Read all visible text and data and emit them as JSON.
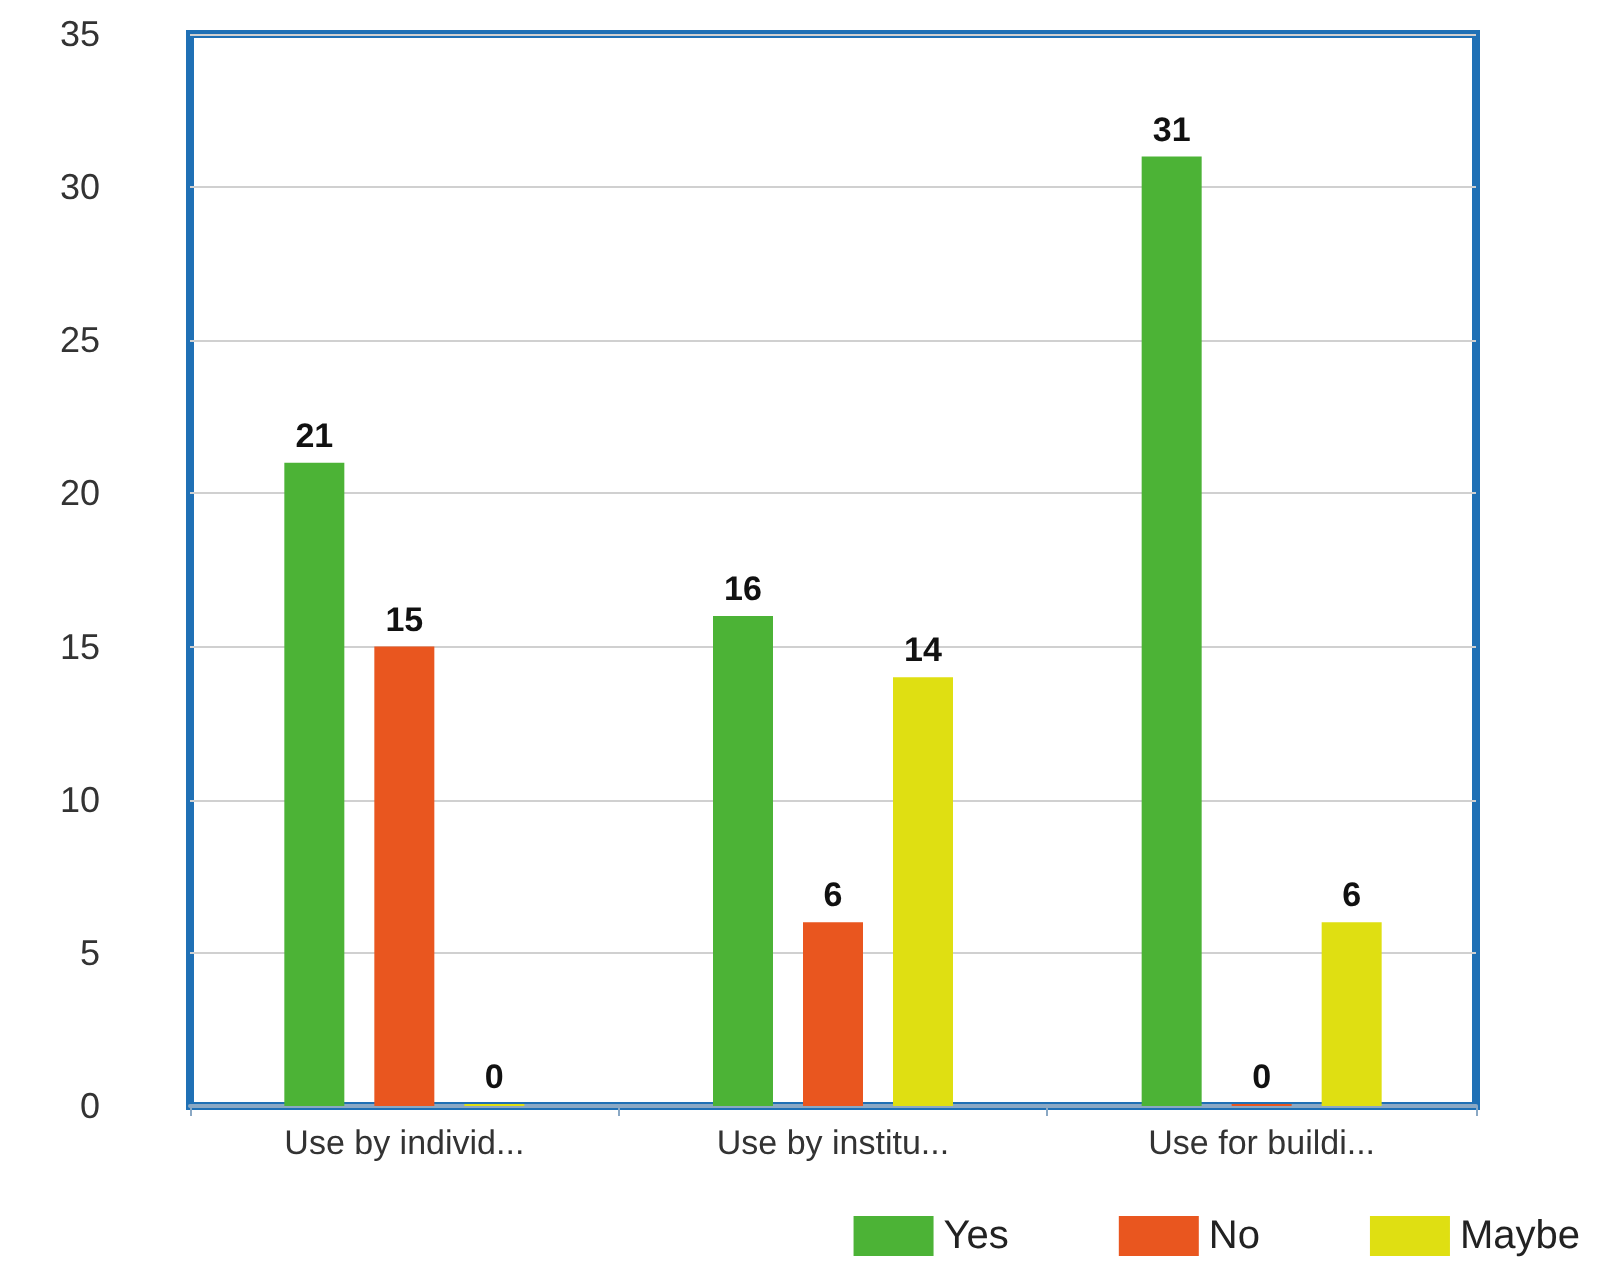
{
  "chart_data": {
    "type": "bar",
    "categories": [
      "Use by individ...",
      "Use by institu...",
      "Use for buildi..."
    ],
    "series": [
      {
        "name": "Yes",
        "color": "#4cb336",
        "values": [
          21,
          16,
          31
        ]
      },
      {
        "name": "No",
        "color": "#e9561f",
        "values": [
          15,
          6,
          0
        ]
      },
      {
        "name": "Maybe",
        "color": "#dfdf12",
        "values": [
          0,
          14,
          6
        ]
      }
    ],
    "ylim": [
      0,
      35
    ],
    "yticks": [
      0,
      5,
      10,
      15,
      20,
      25,
      30,
      35
    ],
    "grid": "y",
    "legend": "bottom right",
    "data_labels": true
  }
}
